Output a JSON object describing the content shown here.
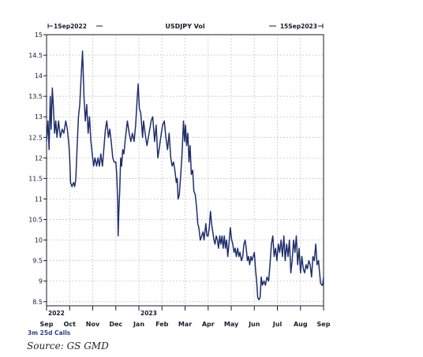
{
  "chart_data": {
    "type": "line",
    "title": "USDJPY Vol",
    "range_start_label": "1Sep2022",
    "range_end_label": "15Sep2023",
    "series_label": "3m 25d Calls",
    "source": "Source: GS GMD",
    "ylim": [
      8.4,
      15
    ],
    "yticks": [
      8.5,
      9,
      9.5,
      10,
      10.5,
      11,
      11.5,
      12,
      12.5,
      13,
      13.5,
      14,
      14.5,
      15
    ],
    "ytick_labels": [
      "8.5",
      "9",
      "9.5",
      "10",
      "10.5",
      "11",
      "11.5",
      "12",
      "12.5",
      "13",
      "13.5",
      "14",
      "14.5",
      "15"
    ],
    "x_month_labels": [
      "Sep",
      "Oct",
      "Nov",
      "Dec",
      "Jan",
      "Feb",
      "Mar",
      "Apr",
      "May",
      "Jun",
      "Jul",
      "Aug",
      "Sep"
    ],
    "x_year_labels": [
      {
        "text": "2022",
        "month_index": 0
      },
      {
        "text": "2023",
        "month_index": 4
      }
    ],
    "grid": true,
    "series": [
      {
        "points": [
          [
            0.0,
            12.4
          ],
          [
            0.06,
            12.9
          ],
          [
            0.11,
            12.2
          ],
          [
            0.16,
            13.5
          ],
          [
            0.2,
            12.7
          ],
          [
            0.25,
            13.7
          ],
          [
            0.3,
            13.2
          ],
          [
            0.35,
            12.6
          ],
          [
            0.4,
            12.9
          ],
          [
            0.45,
            12.5
          ],
          [
            0.52,
            12.9
          ],
          [
            0.6,
            12.5
          ],
          [
            0.68,
            12.7
          ],
          [
            0.75,
            12.6
          ],
          [
            0.83,
            12.9
          ],
          [
            0.9,
            12.7
          ],
          [
            0.97,
            12.3
          ],
          [
            1.0,
            12.0
          ],
          [
            1.04,
            11.4
          ],
          [
            1.1,
            11.3
          ],
          [
            1.17,
            11.4
          ],
          [
            1.22,
            11.3
          ],
          [
            1.27,
            11.5
          ],
          [
            1.32,
            12.2
          ],
          [
            1.38,
            13.0
          ],
          [
            1.44,
            13.3
          ],
          [
            1.5,
            14.0
          ],
          [
            1.56,
            14.6
          ],
          [
            1.62,
            13.5
          ],
          [
            1.68,
            12.9
          ],
          [
            1.74,
            13.3
          ],
          [
            1.8,
            12.6
          ],
          [
            1.86,
            13.0
          ],
          [
            1.92,
            12.4
          ],
          [
            1.98,
            12.1
          ],
          [
            2.04,
            11.8
          ],
          [
            2.1,
            12.0
          ],
          [
            2.17,
            11.8
          ],
          [
            2.23,
            12.0
          ],
          [
            2.29,
            11.8
          ],
          [
            2.35,
            12.1
          ],
          [
            2.42,
            11.8
          ],
          [
            2.48,
            12.2
          ],
          [
            2.55,
            12.7
          ],
          [
            2.61,
            12.9
          ],
          [
            2.68,
            12.5
          ],
          [
            2.74,
            12.7
          ],
          [
            2.8,
            12.4
          ],
          [
            2.87,
            12.0
          ],
          [
            2.93,
            11.9
          ],
          [
            3.0,
            11.9
          ],
          [
            3.04,
            11.6
          ],
          [
            3.08,
            11.0
          ],
          [
            3.1,
            10.1
          ],
          [
            3.13,
            10.7
          ],
          [
            3.17,
            11.2
          ],
          [
            3.21,
            12.0
          ],
          [
            3.25,
            11.8
          ],
          [
            3.3,
            12.2
          ],
          [
            3.35,
            12.1
          ],
          [
            3.42,
            12.5
          ],
          [
            3.5,
            12.9
          ],
          [
            3.58,
            12.6
          ],
          [
            3.65,
            12.4
          ],
          [
            3.72,
            12.6
          ],
          [
            3.79,
            12.4
          ],
          [
            3.86,
            12.8
          ],
          [
            3.93,
            13.5
          ],
          [
            3.97,
            13.8
          ],
          [
            4.02,
            13.2
          ],
          [
            4.08,
            13.1
          ],
          [
            4.12,
            12.8
          ],
          [
            4.16,
            12.5
          ],
          [
            4.2,
            12.9
          ],
          [
            4.27,
            12.6
          ],
          [
            4.35,
            12.3
          ],
          [
            4.44,
            12.6
          ],
          [
            4.53,
            12.9
          ],
          [
            4.6,
            13.0
          ],
          [
            4.68,
            12.4
          ],
          [
            4.75,
            12.8
          ],
          [
            4.82,
            12.0
          ],
          [
            4.9,
            12.3
          ],
          [
            4.97,
            12.6
          ],
          [
            5.03,
            12.8
          ],
          [
            5.1,
            12.9
          ],
          [
            5.17,
            12.5
          ],
          [
            5.24,
            12.2
          ],
          [
            5.31,
            12.6
          ],
          [
            5.38,
            12.0
          ],
          [
            5.44,
            11.8
          ],
          [
            5.5,
            11.9
          ],
          [
            5.56,
            11.7
          ],
          [
            5.62,
            11.4
          ],
          [
            5.66,
            11.5
          ],
          [
            5.7,
            11.0
          ],
          [
            5.75,
            11.1
          ],
          [
            5.8,
            11.5
          ],
          [
            5.86,
            12.0
          ],
          [
            5.9,
            12.5
          ],
          [
            5.93,
            12.9
          ],
          [
            5.98,
            12.4
          ],
          [
            6.02,
            12.8
          ],
          [
            6.07,
            12.3
          ],
          [
            6.12,
            12.6
          ],
          [
            6.17,
            11.9
          ],
          [
            6.22,
            12.3
          ],
          [
            6.27,
            11.6
          ],
          [
            6.33,
            11.7
          ],
          [
            6.38,
            11.2
          ],
          [
            6.44,
            11.1
          ],
          [
            6.5,
            10.8
          ],
          [
            6.55,
            10.4
          ],
          [
            6.6,
            10.3
          ],
          [
            6.66,
            10.0
          ],
          [
            6.72,
            10.1
          ],
          [
            6.78,
            10.2
          ],
          [
            6.82,
            10.0
          ],
          [
            6.86,
            10.2
          ],
          [
            6.9,
            10.4
          ],
          [
            6.95,
            10.1
          ],
          [
            7.0,
            10.1
          ],
          [
            7.05,
            10.3
          ],
          [
            7.1,
            10.7
          ],
          [
            7.15,
            10.4
          ],
          [
            7.2,
            10.2
          ],
          [
            7.25,
            10.0
          ],
          [
            7.3,
            9.9
          ],
          [
            7.35,
            10.1
          ],
          [
            7.4,
            10.0
          ],
          [
            7.45,
            9.8
          ],
          [
            7.5,
            10.1
          ],
          [
            7.55,
            9.9
          ],
          [
            7.6,
            10.1
          ],
          [
            7.65,
            9.8
          ],
          [
            7.7,
            10.1
          ],
          [
            7.75,
            9.8
          ],
          [
            7.8,
            10.0
          ],
          [
            7.85,
            9.6
          ],
          [
            7.9,
            9.9
          ],
          [
            7.96,
            10.3
          ],
          [
            8.02,
            10.0
          ],
          [
            8.07,
            9.9
          ],
          [
            8.12,
            9.7
          ],
          [
            8.17,
            9.8
          ],
          [
            8.22,
            9.6
          ],
          [
            8.28,
            9.8
          ],
          [
            8.33,
            9.6
          ],
          [
            8.38,
            9.7
          ],
          [
            8.44,
            9.5
          ],
          [
            8.5,
            9.6
          ],
          [
            8.55,
            9.9
          ],
          [
            8.6,
            10.0
          ],
          [
            8.65,
            9.8
          ],
          [
            8.7,
            9.5
          ],
          [
            8.75,
            9.6
          ],
          [
            8.8,
            9.4
          ],
          [
            8.85,
            9.6
          ],
          [
            8.9,
            9.5
          ],
          [
            8.95,
            9.6
          ],
          [
            9.0,
            9.7
          ],
          [
            9.05,
            9.3
          ],
          [
            9.1,
            9.0
          ],
          [
            9.15,
            8.6
          ],
          [
            9.2,
            8.55
          ],
          [
            9.25,
            8.6
          ],
          [
            9.3,
            9.1
          ],
          [
            9.35,
            8.9
          ],
          [
            9.42,
            9.0
          ],
          [
            9.48,
            8.9
          ],
          [
            9.55,
            9.1
          ],
          [
            9.62,
            9.0
          ],
          [
            9.68,
            9.4
          ],
          [
            9.74,
            9.9
          ],
          [
            9.8,
            10.1
          ],
          [
            9.86,
            9.6
          ],
          [
            9.92,
            9.8
          ],
          [
            9.98,
            9.5
          ],
          [
            10.04,
            9.9
          ],
          [
            10.1,
            9.7
          ],
          [
            10.16,
            10.0
          ],
          [
            10.22,
            9.6
          ],
          [
            10.28,
            10.1
          ],
          [
            10.34,
            9.5
          ],
          [
            10.4,
            9.9
          ],
          [
            10.46,
            9.6
          ],
          [
            10.52,
            10.0
          ],
          [
            10.58,
            9.2
          ],
          [
            10.64,
            9.5
          ],
          [
            10.7,
            10.0
          ],
          [
            10.76,
            9.7
          ],
          [
            10.82,
            10.1
          ],
          [
            10.88,
            9.4
          ],
          [
            10.94,
            9.8
          ],
          [
            11.0,
            9.2
          ],
          [
            11.06,
            9.6
          ],
          [
            11.12,
            9.3
          ],
          [
            11.18,
            9.2
          ],
          [
            11.24,
            9.4
          ],
          [
            11.3,
            9.3
          ],
          [
            11.36,
            9.5
          ],
          [
            11.42,
            9.4
          ],
          [
            11.48,
            9.1
          ],
          [
            11.54,
            9.6
          ],
          [
            11.6,
            9.5
          ],
          [
            11.66,
            9.9
          ],
          [
            11.72,
            9.4
          ],
          [
            11.78,
            9.5
          ],
          [
            11.83,
            9.2
          ],
          [
            11.87,
            8.95
          ],
          [
            11.92,
            8.9
          ],
          [
            11.96,
            8.9
          ],
          [
            12.0,
            9.1
          ]
        ]
      }
    ],
    "colors": {
      "line": "#1f2f6b",
      "axis": "#1a1a2e",
      "grid": "#c8c8c8"
    }
  }
}
